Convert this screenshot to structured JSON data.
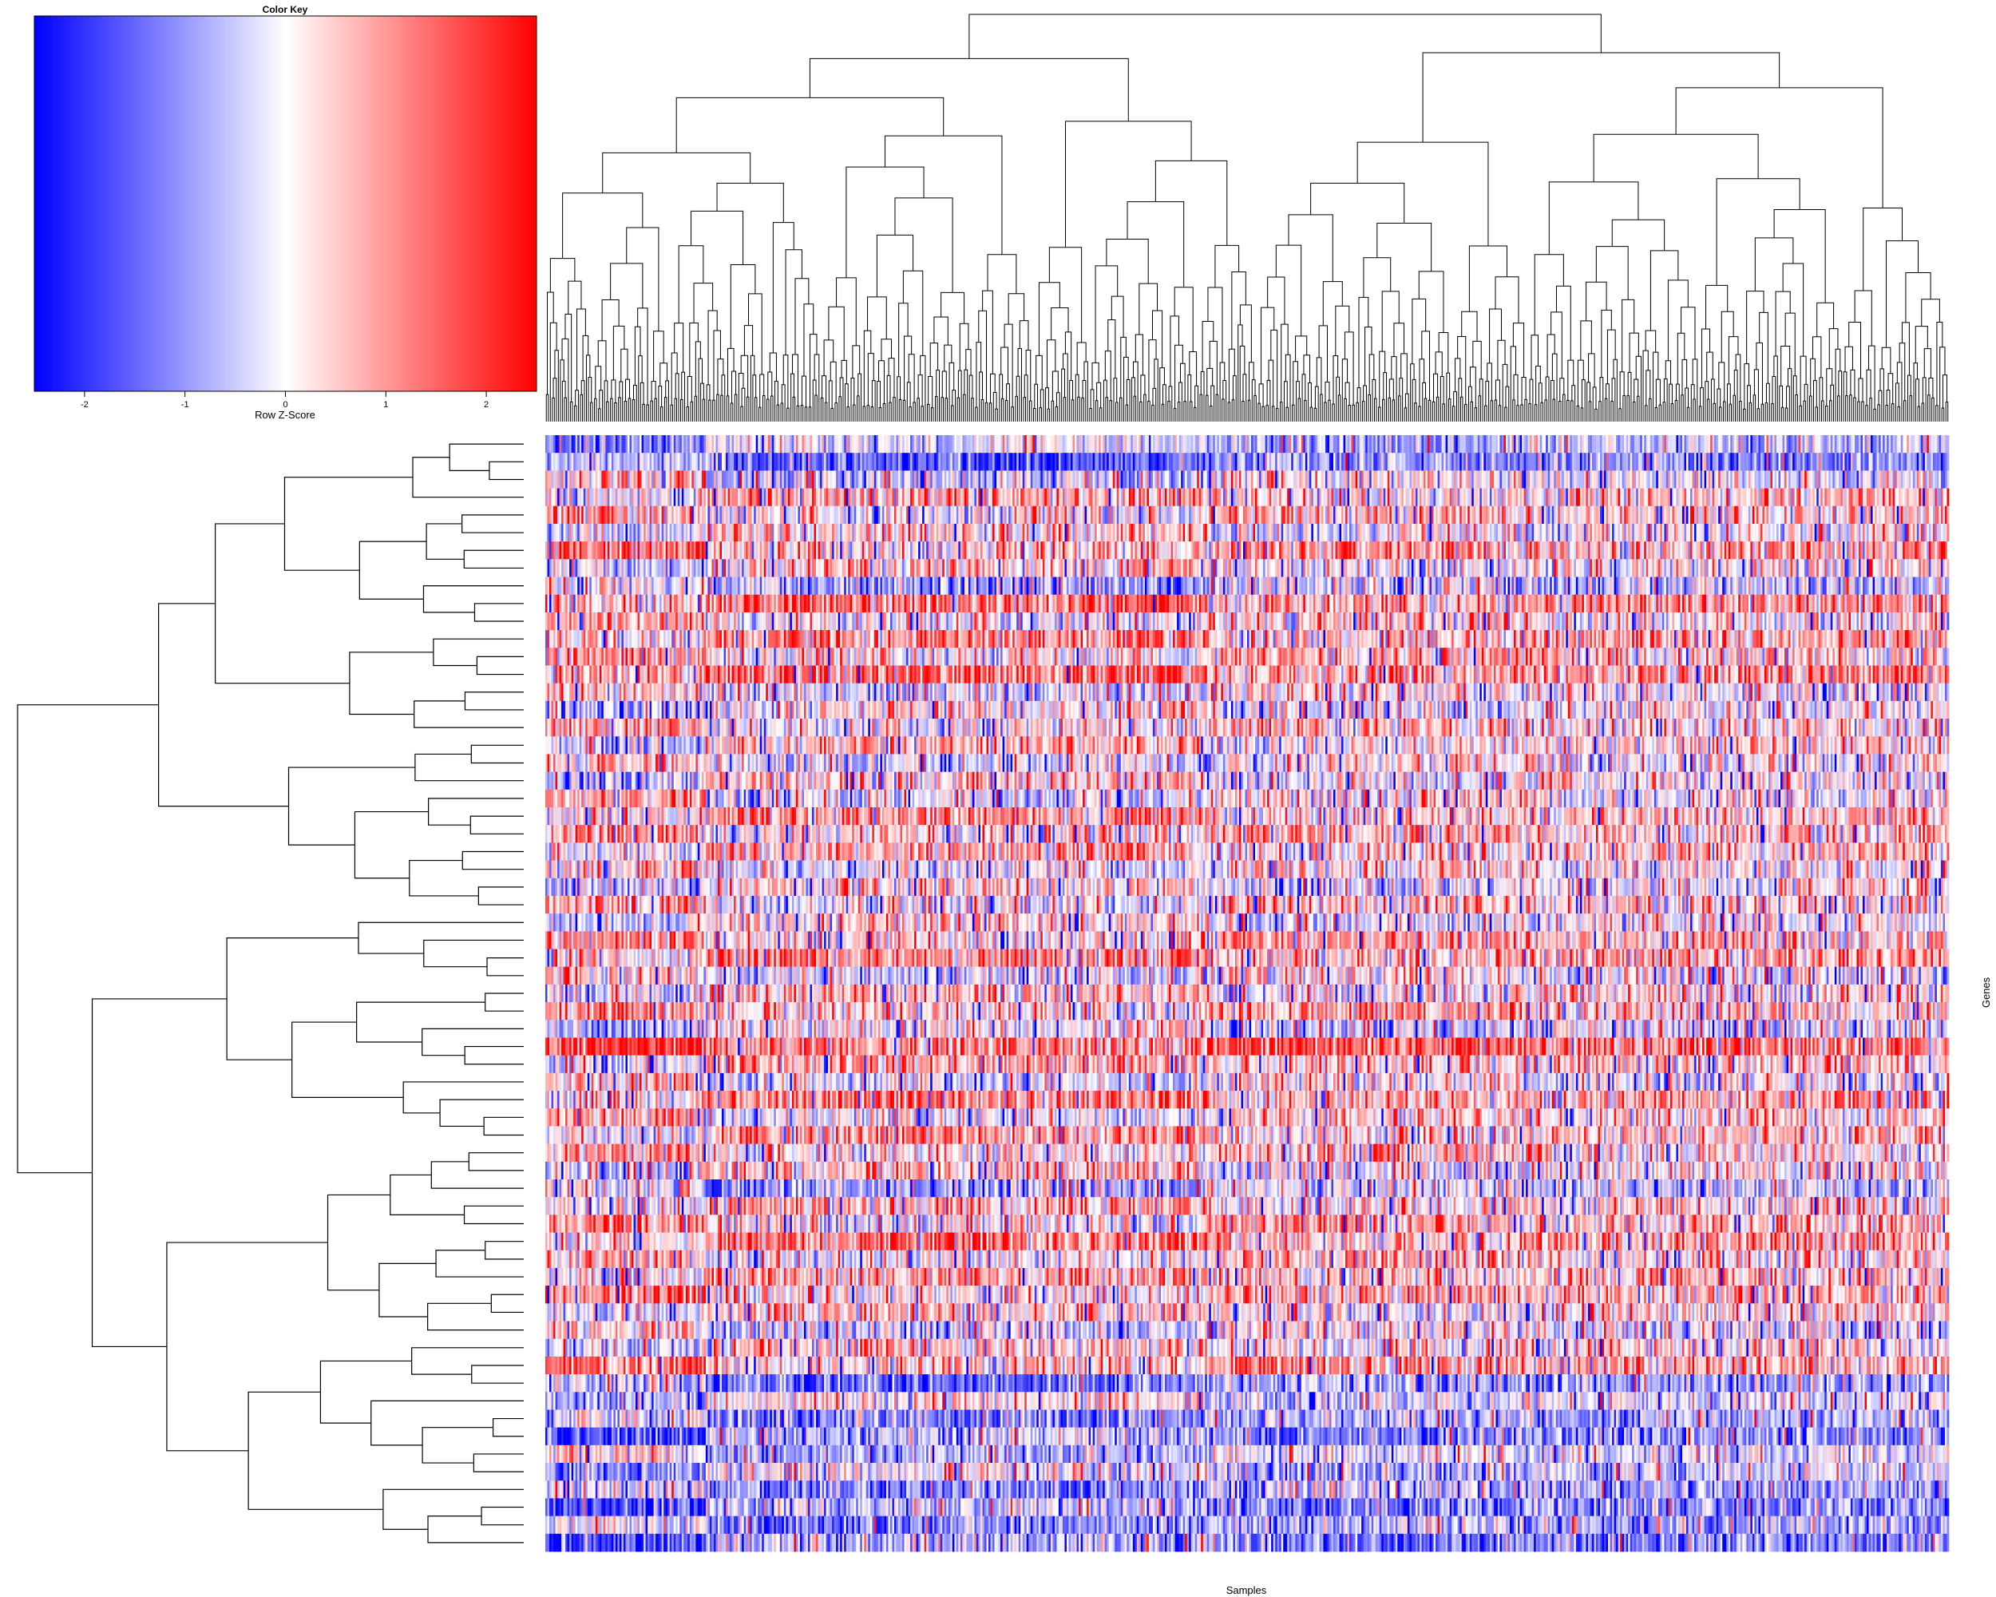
{
  "chart_data": {
    "type": "heatmap",
    "color_key": {
      "title": "Color Key",
      "xlabel": "Row Z-Score",
      "ticks": [
        "-2",
        "-1",
        "0",
        "1",
        "2"
      ],
      "range": [
        -2.5,
        2.5
      ],
      "low_color": "#0000ff",
      "mid_color": "#ffffff",
      "high_color": "#ff0000"
    },
    "xlabel": "Samples",
    "ylabel": "Genes",
    "n_rows": 63,
    "n_cols": 700,
    "row_dendrogram": true,
    "column_dendrogram": true,
    "row_bands": [
      {
        "rows": [
          0,
          1
        ],
        "baseline": -1.0,
        "volatility": 0.9
      },
      {
        "rows": [
          2,
          34
        ],
        "baseline": 0.3,
        "volatility": 1.3
      },
      {
        "rows": [
          35,
          52
        ],
        "baseline": 0.2,
        "volatility": 1.3
      },
      {
        "rows": [
          53,
          62
        ],
        "baseline": -0.7,
        "volatility": 1.1
      }
    ],
    "column_blocks": [
      {
        "cols": [
          0,
          80
        ],
        "effect": 0.6
      },
      {
        "cols": [
          80,
          330
        ],
        "effect": -0.4
      },
      {
        "cols": [
          330,
          480
        ],
        "effect": 0.3
      },
      {
        "cols": [
          480,
          700
        ],
        "effect": 0.0
      }
    ]
  }
}
